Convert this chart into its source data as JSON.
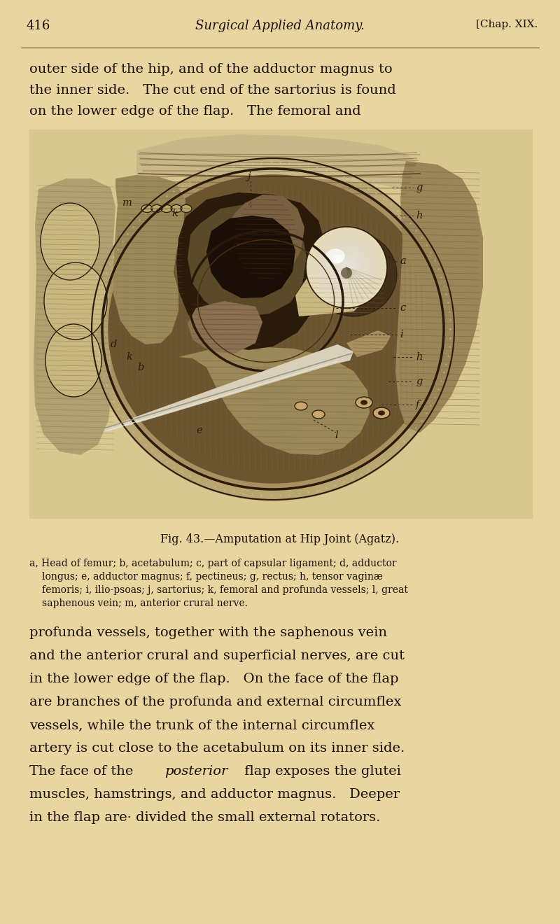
{
  "background_color": "#e8d5a0",
  "page_width": 8.0,
  "page_height": 13.2,
  "dpi": 100,
  "header_page_num": "416",
  "header_title": "Surgical Applied Anatomy.",
  "header_chap": "[Chap. XIX.",
  "top_text_line1": "outer side of the hip, and of the adductor magnus to",
  "top_text_line2": "the inner side.   The cut end of the sartorius is found",
  "top_text_line3": "on the lower edge of the flap.   The femoral and",
  "fig_caption": "Fig. 43.—Amputation at Hip Joint (Agatz).",
  "legend_line1": "a, Head of femur; b, acetabulum; c, part of capsular ligament; d, adductor",
  "legend_line2": "longus; e, adductor magnus; f, pectineus; g, rectus; h, tensor vaginæ",
  "legend_line3": "femoris; i, ilio-psoas; j, sartorius; k, femoral and profunda vessels; l, great",
  "legend_line4": "saphenous vein; m, anterior crural nerve.",
  "bottom_line1": "profunda vessels, together with the saphenous vein",
  "bottom_line2": "and the anterior crural and superficial nerves, are cut",
  "bottom_line3": "in the lower edge of the flap.   On the face of the flap",
  "bottom_line4": "are branches of the profunda and external circumflex",
  "bottom_line5": "vessels, while the trunk of the internal circumflex",
  "bottom_line6": "artery is cut close to the acetabulum on its inner side.",
  "bottom_line7_pre": "The face of the ",
  "bottom_line7_italic": "posterior",
  "bottom_line7_post": " flap exposes the glutei",
  "bottom_line8": "muscles, hamstrings, and adductor magnus.   Deeper",
  "bottom_line9": "in the flap are· divided the small external rotators.",
  "text_color": "#1a0e05",
  "ink_color": "#2a1a08",
  "mid_tone": "#8a7550",
  "dark_tone": "#3a2510",
  "light_tone": "#d8c898",
  "paper_color": "#dfc98a"
}
